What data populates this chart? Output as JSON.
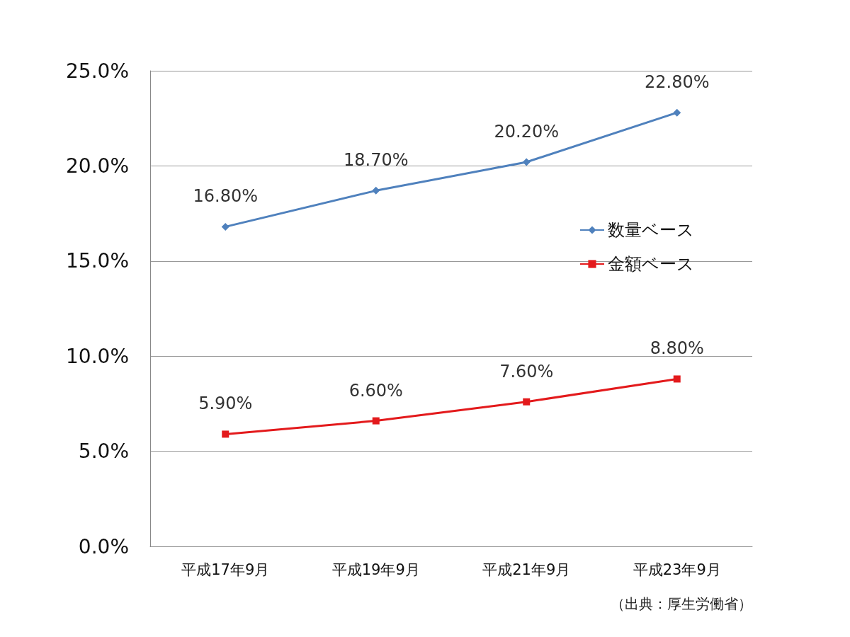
{
  "chart_data": {
    "type": "line",
    "categories": [
      "平成17年9月",
      "平成19年9月",
      "平成21年9月",
      "平成23年9月"
    ],
    "series": [
      {
        "name": "数量ベース",
        "color": "#4f81bd",
        "marker": "diamond",
        "values": [
          16.8,
          18.7,
          20.2,
          22.8
        ],
        "value_labels": [
          "16.80%",
          "18.70%",
          "20.20%",
          "22.80%"
        ]
      },
      {
        "name": "金額ベース",
        "color": "#e31a1c",
        "marker": "square",
        "values": [
          5.9,
          6.6,
          7.6,
          8.8
        ],
        "value_labels": [
          "5.90%",
          "6.60%",
          "7.60%",
          "8.80%"
        ]
      }
    ],
    "ylim": [
      0,
      25
    ],
    "yticks": [
      {
        "value": 0,
        "label": "0.0%"
      },
      {
        "value": 5,
        "label": "5.0%"
      },
      {
        "value": 10,
        "label": "10.0%"
      },
      {
        "value": 15,
        "label": "15.0%"
      },
      {
        "value": 20,
        "label": "20.0%"
      },
      {
        "value": 25,
        "label": "25.0%"
      }
    ],
    "grid": "y",
    "legend": "right",
    "line_style": "solid",
    "annotations": [
      "（出典：厚生労働省）"
    ]
  }
}
